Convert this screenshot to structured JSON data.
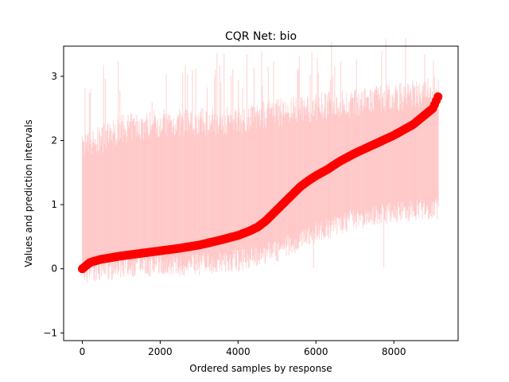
{
  "chart_data": {
    "type": "line",
    "title": "CQR Net: bio",
    "xlabel": "Ordered samples by response",
    "ylabel": "Values and prediction intervals",
    "xlim": [
      -480,
      9650
    ],
    "ylim": [
      -1.12,
      3.47
    ],
    "xticks": [
      0,
      2000,
      4000,
      6000,
      8000
    ],
    "xtick_labels": [
      "0",
      "2000",
      "4000",
      "6000",
      "8000"
    ],
    "yticks": [
      -1,
      0,
      1,
      2,
      3
    ],
    "ytick_labels": [
      "−1",
      "0",
      "1",
      "2",
      "3"
    ],
    "grid": false,
    "legend": "none",
    "n_samples": 9150,
    "series": [
      {
        "kind": "line",
        "role": "sorted response values",
        "color": "#ff0000",
        "marker": "circle",
        "x": [
          0,
          200,
          500,
          1000,
          1500,
          2000,
          2500,
          3000,
          3500,
          4000,
          4300,
          4500,
          4700,
          5000,
          5300,
          5600,
          5800,
          6000,
          6300,
          6600,
          7000,
          7500,
          8000,
          8500,
          9000,
          9150
        ],
        "y": [
          0.0,
          0.1,
          0.15,
          0.2,
          0.24,
          0.28,
          0.32,
          0.37,
          0.44,
          0.52,
          0.59,
          0.65,
          0.74,
          0.92,
          1.1,
          1.28,
          1.37,
          1.45,
          1.55,
          1.67,
          1.8,
          1.94,
          2.08,
          2.25,
          2.5,
          2.7
        ]
      },
      {
        "kind": "interval-band",
        "role": "prediction interval lower bound (approx.)",
        "color": "#ffaaaa",
        "x": [
          0,
          1000,
          2000,
          3000,
          4000,
          5000,
          6000,
          7000,
          8000,
          9000,
          9150
        ],
        "y": [
          0.1,
          0.2,
          0.22,
          0.25,
          0.3,
          0.45,
          0.75,
          0.95,
          1.05,
          1.1,
          1.1
        ]
      },
      {
        "kind": "interval-band",
        "role": "prediction interval upper bound (approx.)",
        "color": "#ffaaaa",
        "x": [
          0,
          1000,
          2000,
          3000,
          4000,
          5000,
          6000,
          7000,
          8000,
          9000,
          9150
        ],
        "y": [
          1.9,
          2.2,
          2.3,
          2.3,
          2.35,
          2.45,
          2.55,
          2.6,
          2.7,
          2.8,
          2.8
        ]
      }
    ]
  }
}
